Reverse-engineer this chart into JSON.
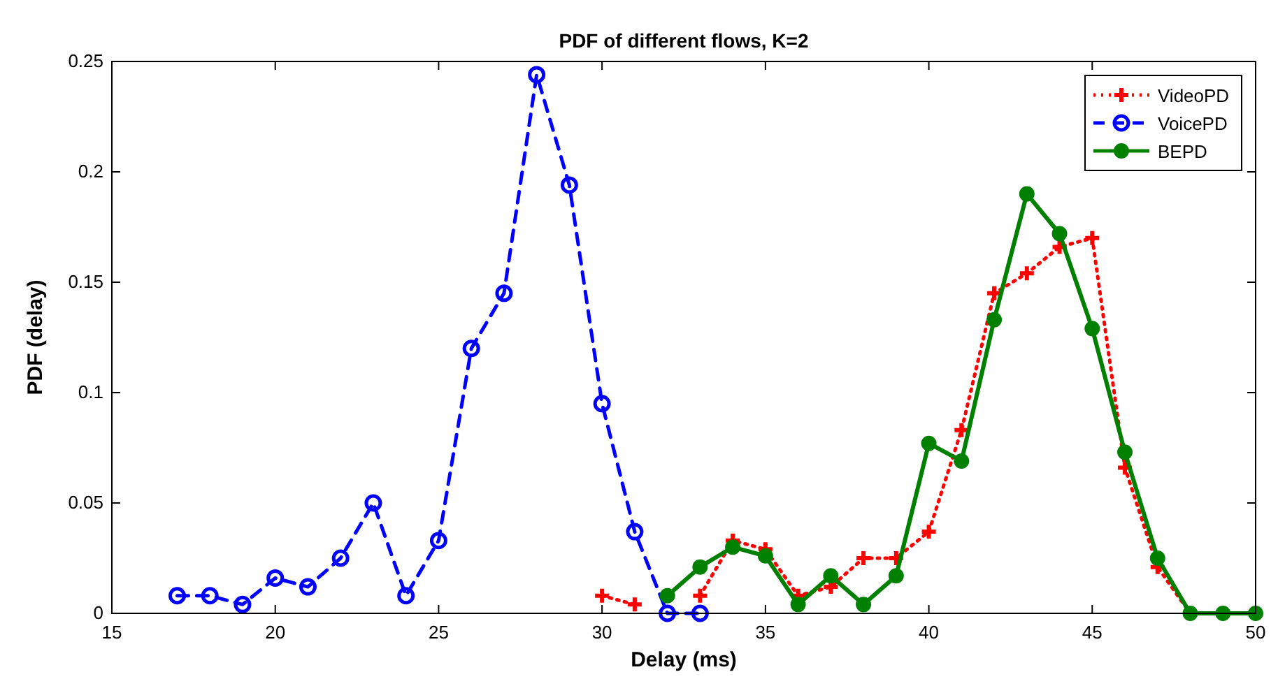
{
  "chart_data": {
    "type": "line",
    "title": "PDF of different flows, K=2",
    "xlabel": "Delay (ms)",
    "ylabel": "PDF (delay)",
    "xlim": [
      15,
      50
    ],
    "xticks": [
      15,
      20,
      25,
      30,
      35,
      40,
      45,
      50
    ],
    "ylim": [
      0,
      0.25
    ],
    "yticks": [
      0,
      0.05,
      0.1,
      0.15,
      0.2,
      0.25
    ],
    "grid": false,
    "legend": "top right",
    "series": [
      {
        "name": "VideoPD",
        "color": "#ff0000",
        "marker": "cross",
        "line_style": "dotted",
        "x": [
          30,
          31,
          32,
          33,
          34,
          35,
          36,
          37,
          38,
          39,
          40,
          41,
          42,
          43,
          44,
          45,
          46,
          47,
          48
        ],
        "values": [
          0.008,
          0.004,
          null,
          0.008,
          0.033,
          0.029,
          0.008,
          0.012,
          0.025,
          0.025,
          0.037,
          0.083,
          0.145,
          0.154,
          0.166,
          0.17,
          0.066,
          0.021,
          0
        ]
      },
      {
        "name": "VoicePD",
        "color": "#0000ff",
        "marker": "circle",
        "line_style": "dashed",
        "x": [
          17,
          18,
          19,
          20,
          21,
          22,
          23,
          24,
          25,
          26,
          27,
          28,
          29,
          30,
          31,
          32,
          33
        ],
        "values": [
          0.008,
          0.008,
          0.004,
          0.016,
          0.012,
          0.025,
          0.05,
          0.008,
          0.033,
          0.12,
          0.145,
          0.244,
          0.194,
          0.095,
          0.037,
          0,
          0
        ]
      },
      {
        "name": "BEPD",
        "color": "#008000",
        "marker": "dot",
        "line_style": "solid",
        "x": [
          32,
          33,
          34,
          35,
          36,
          37,
          38,
          39,
          40,
          41,
          42,
          43,
          44,
          45,
          46,
          47,
          48,
          49,
          50
        ],
        "values": [
          0.008,
          0.021,
          0.03,
          0.026,
          0.004,
          0.017,
          0.004,
          0.017,
          0.077,
          0.069,
          0.133,
          0.19,
          0.172,
          0.129,
          0.073,
          0.025,
          0,
          0,
          0
        ]
      }
    ]
  }
}
